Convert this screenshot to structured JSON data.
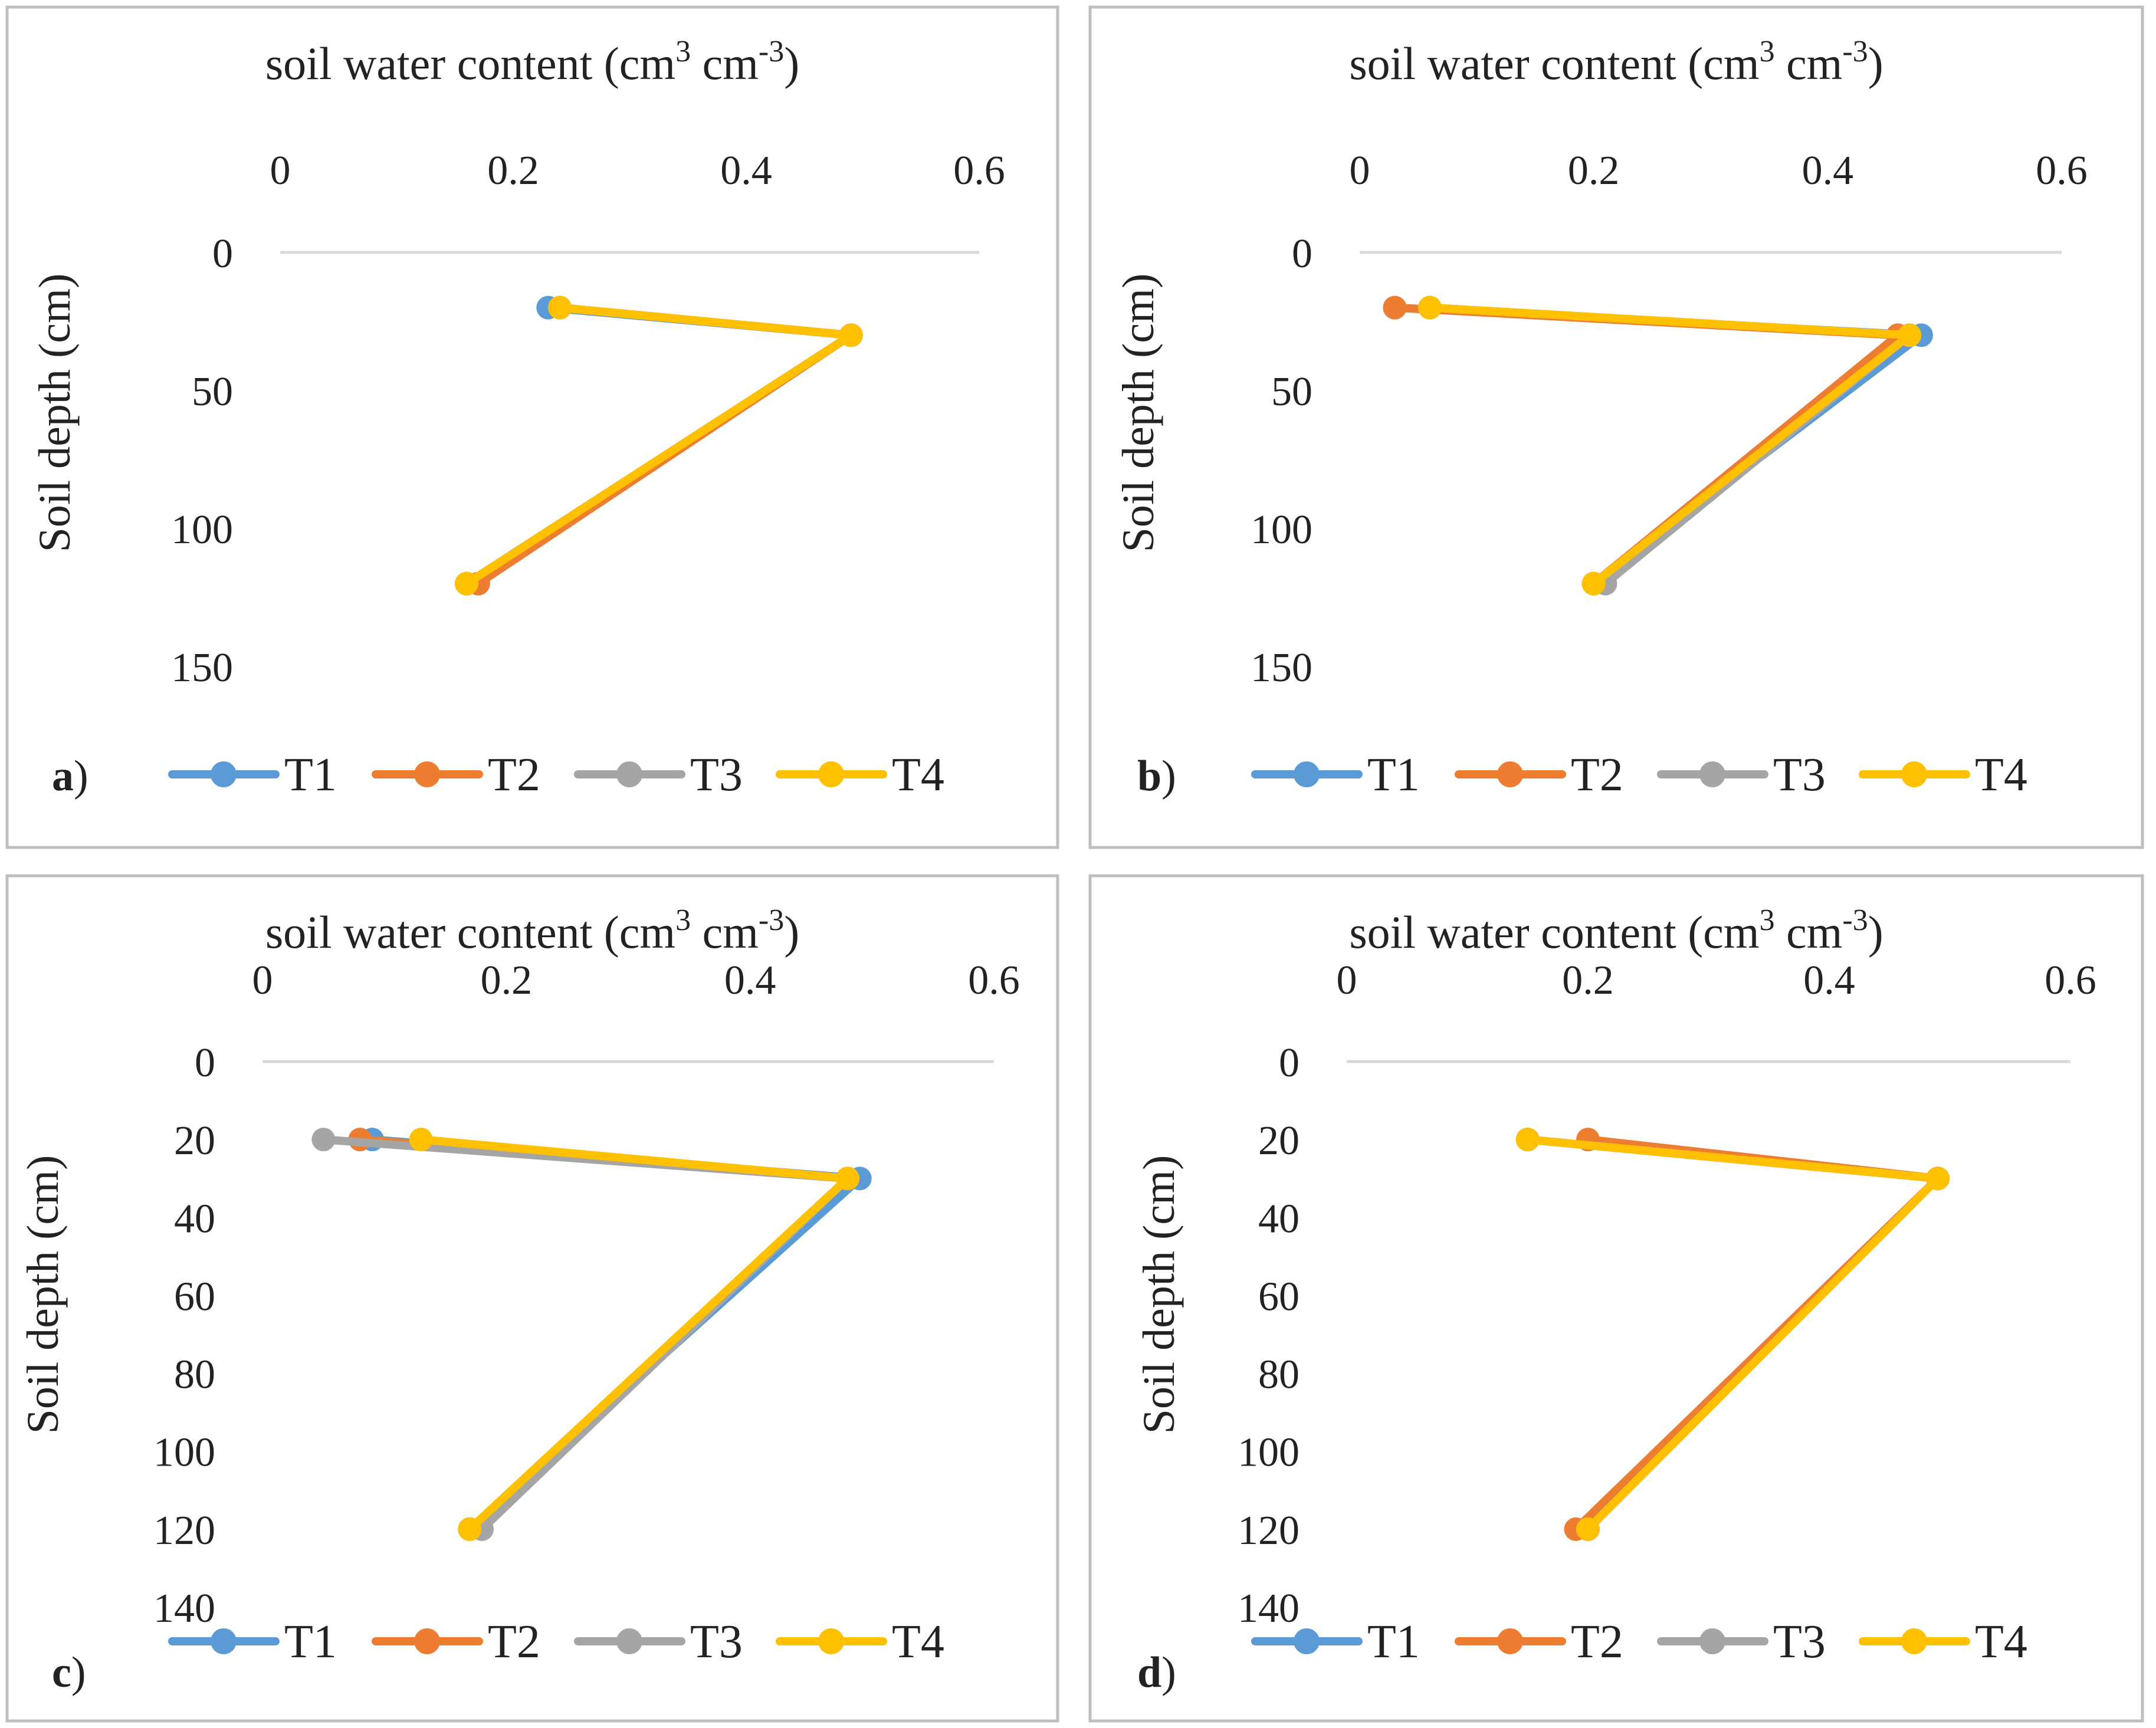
{
  "figure": {
    "panel_border_color": "#bfbfbf",
    "grid_color": "#d9d9d9",
    "series_colors": {
      "T1": "#5b9bd5",
      "T2": "#ed7d31",
      "T3": "#a5a5a5",
      "T4": "#ffc000"
    }
  },
  "chart_data": [
    {
      "panel_label": "a",
      "panel_label_close": ")",
      "type": "line",
      "title": "soil water content (cm3 cm-3)",
      "title_parts": {
        "before": "soil water content (cm",
        "sup1": "3",
        "mid": " cm",
        "sup2": "-3",
        "after": ")"
      },
      "xlabel": "soil water content (cm3 cm-3)",
      "ylabel": "Soil depth (cm)",
      "xlim": [
        0,
        0.6
      ],
      "ylim": [
        0,
        150
      ],
      "y_inverted": true,
      "x_axis_position": "top",
      "xticks": [
        "0",
        "0.2",
        "0.4",
        "0.6"
      ],
      "yticks": [
        "0",
        "50",
        "100",
        "150"
      ],
      "legend_position": "bottom",
      "series": [
        {
          "name": "T1",
          "color": "#5b9bd5",
          "points": [
            {
              "x": 0.23,
              "y": 20
            },
            {
              "x": 0.49,
              "y": 30
            },
            {
              "x": 0.16,
              "y": 120
            }
          ]
        },
        {
          "name": "T2",
          "color": "#ed7d31",
          "points": [
            {
              "x": 0.24,
              "y": 20
            },
            {
              "x": 0.49,
              "y": 30
            },
            {
              "x": 0.17,
              "y": 120
            }
          ]
        },
        {
          "name": "T3",
          "color": "#a5a5a5",
          "points": [
            {
              "x": 0.24,
              "y": 20
            },
            {
              "x": 0.49,
              "y": 30
            },
            {
              "x": 0.16,
              "y": 120
            }
          ]
        },
        {
          "name": "T4",
          "color": "#ffc000",
          "points": [
            {
              "x": 0.24,
              "y": 20
            },
            {
              "x": 0.49,
              "y": 30
            },
            {
              "x": 0.16,
              "y": 120
            }
          ]
        }
      ]
    },
    {
      "panel_label": "b",
      "panel_label_close": ")",
      "type": "line",
      "title": "soil water content (cm3 cm-3)",
      "title_parts": {
        "before": "soil water content (cm",
        "sup1": "3",
        "mid": " cm",
        "sup2": "-3",
        "after": ")"
      },
      "xlabel": "soil water content (cm3 cm-3)",
      "ylabel": "Soil depth (cm)",
      "xlim": [
        0,
        0.6
      ],
      "ylim": [
        0,
        150
      ],
      "y_inverted": true,
      "x_axis_position": "top",
      "xticks": [
        "0",
        "0.2",
        "0.4",
        "0.6"
      ],
      "yticks": [
        "0",
        "50",
        "100",
        "150"
      ],
      "legend_position": "bottom",
      "series": [
        {
          "name": "T1",
          "color": "#5b9bd5",
          "points": [
            {
              "x": 0.03,
              "y": 20
            },
            {
              "x": 0.48,
              "y": 30
            },
            {
              "x": 0.2,
              "y": 120
            }
          ]
        },
        {
          "name": "T2",
          "color": "#ed7d31",
          "points": [
            {
              "x": 0.03,
              "y": 20
            },
            {
              "x": 0.46,
              "y": 30
            },
            {
              "x": 0.2,
              "y": 120
            }
          ]
        },
        {
          "name": "T3",
          "color": "#a5a5a5",
          "points": [
            {
              "x": 0.06,
              "y": 20
            },
            {
              "x": 0.47,
              "y": 30
            },
            {
              "x": 0.21,
              "y": 120
            }
          ]
        },
        {
          "name": "T4",
          "color": "#ffc000",
          "points": [
            {
              "x": 0.06,
              "y": 20
            },
            {
              "x": 0.47,
              "y": 30
            },
            {
              "x": 0.2,
              "y": 120
            }
          ]
        }
      ]
    },
    {
      "panel_label": "c",
      "panel_label_close": ")",
      "type": "line",
      "title": "soil water content (cm3 cm-3)",
      "title_parts": {
        "before": "soil water content (cm",
        "sup1": "3",
        "mid": " cm",
        "sup2": "-3",
        "after": ")"
      },
      "xlabel": "soil water content (cm3 cm-3)",
      "ylabel": "Soil depth (cm)",
      "xlim": [
        0,
        0.6
      ],
      "ylim": [
        0,
        140
      ],
      "y_inverted": true,
      "x_axis_position": "top",
      "xticks": [
        "0",
        "0.2",
        "0.4",
        "0.6"
      ],
      "yticks": [
        "0",
        "20",
        "40",
        "60",
        "80",
        "100",
        "120",
        "140"
      ],
      "legend_position": "bottom",
      "series": [
        {
          "name": "T1",
          "color": "#5b9bd5",
          "points": [
            {
              "x": 0.09,
              "y": 20
            },
            {
              "x": 0.49,
              "y": 30
            },
            {
              "x": 0.17,
              "y": 120
            }
          ]
        },
        {
          "name": "T2",
          "color": "#ed7d31",
          "points": [
            {
              "x": 0.08,
              "y": 20
            },
            {
              "x": 0.48,
              "y": 30
            },
            {
              "x": 0.17,
              "y": 120
            }
          ]
        },
        {
          "name": "T3",
          "color": "#a5a5a5",
          "points": [
            {
              "x": 0.05,
              "y": 20
            },
            {
              "x": 0.48,
              "y": 30
            },
            {
              "x": 0.18,
              "y": 120
            }
          ]
        },
        {
          "name": "T4",
          "color": "#ffc000",
          "points": [
            {
              "x": 0.13,
              "y": 20
            },
            {
              "x": 0.48,
              "y": 30
            },
            {
              "x": 0.17,
              "y": 120
            }
          ]
        }
      ]
    },
    {
      "panel_label": "d",
      "panel_label_close": ")",
      "type": "line",
      "title": "soil water content (cm3 cm-3)",
      "title_parts": {
        "before": "soil water content (cm",
        "sup1": "3",
        "mid": " cm",
        "sup2": "-3",
        "after": ")"
      },
      "xlabel": "soil water content (cm3 cm-3)",
      "ylabel": "Soil depth (cm)",
      "xlim": [
        0,
        0.6
      ],
      "ylim": [
        0,
        140
      ],
      "y_inverted": true,
      "x_axis_position": "top",
      "xticks": [
        "0",
        "0.2",
        "0.4",
        "0.6"
      ],
      "yticks": [
        "0",
        "20",
        "40",
        "60",
        "80",
        "100",
        "120",
        "140"
      ],
      "legend_position": "bottom",
      "series": [
        {
          "name": "T1",
          "color": "#5b9bd5",
          "points": [
            {
              "x": 0.15,
              "y": 20
            },
            {
              "x": 0.49,
              "y": 30
            },
            {
              "x": 0.2,
              "y": 120
            }
          ]
        },
        {
          "name": "T2",
          "color": "#ed7d31",
          "points": [
            {
              "x": 0.2,
              "y": 20
            },
            {
              "x": 0.49,
              "y": 30
            },
            {
              "x": 0.19,
              "y": 120
            }
          ]
        },
        {
          "name": "T3",
          "color": "#a5a5a5",
          "points": [
            {
              "x": 0.15,
              "y": 20
            },
            {
              "x": 0.49,
              "y": 30
            },
            {
              "x": 0.2,
              "y": 120
            }
          ]
        },
        {
          "name": "T4",
          "color": "#ffc000",
          "points": [
            {
              "x": 0.15,
              "y": 20
            },
            {
              "x": 0.49,
              "y": 30
            },
            {
              "x": 0.2,
              "y": 120
            }
          ]
        }
      ]
    }
  ]
}
